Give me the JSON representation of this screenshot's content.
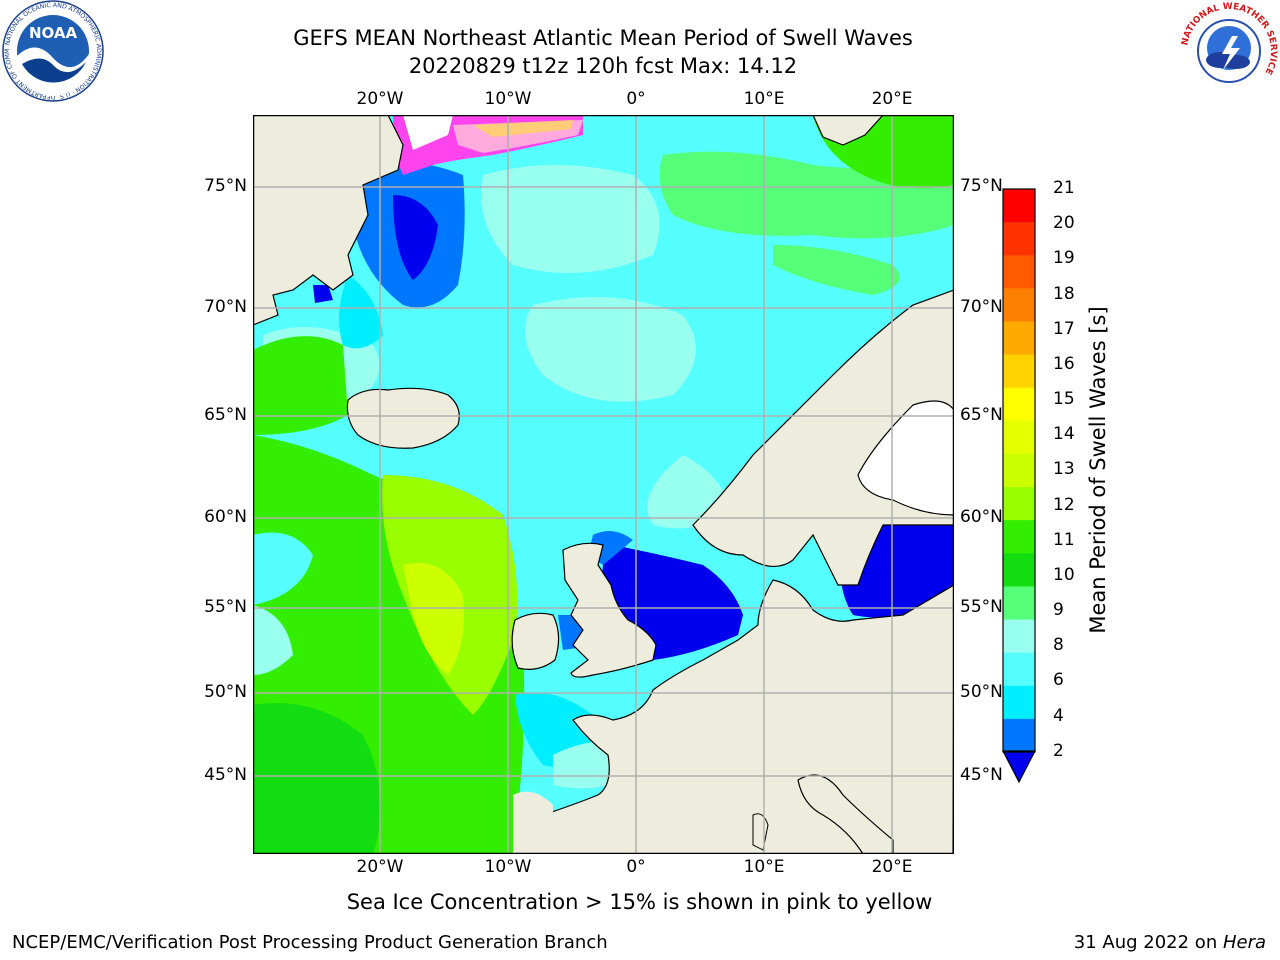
{
  "header": {
    "title_line1": "GEFS MEAN Northeast Atlantic Mean Period of Swell Waves",
    "title_line2": "20220829 t12z 120h fcst   Max: 14.12"
  },
  "logos": {
    "noaa_text": "NOAA",
    "noaa_ring_text": "NATIONAL OCEANIC AND ATMOSPHERIC ADMINISTRATION · U.S. DEPARTMENT OF COMMERCE",
    "nws_ring_text": "NATIONAL WEATHER SERVICE"
  },
  "map": {
    "lon_labels": [
      "20°W",
      "10°W",
      "0°",
      "10°E",
      "20°E"
    ],
    "lat_labels": [
      "75°N",
      "70°N",
      "65°N",
      "60°N",
      "55°N",
      "50°N",
      "45°N"
    ],
    "land_color": "#eeecdd",
    "grid_color": "#b0b0b0"
  },
  "colorbar": {
    "label": "Mean Period of Swell Waves [s]",
    "ticks": [
      "21",
      "20",
      "19",
      "18",
      "17",
      "16",
      "15",
      "14",
      "13",
      "12",
      "11",
      "10",
      "9",
      "8",
      "6",
      "4",
      "2"
    ],
    "colors": [
      "#ff0000",
      "#ff3300",
      "#ff5a00",
      "#ff8000",
      "#ffaa00",
      "#ffd200",
      "#ffff00",
      "#e6ff00",
      "#ccff00",
      "#99ff00",
      "#33ee00",
      "#11dd11",
      "#55ff77",
      "#99ffee",
      "#55ffff",
      "#00eeff",
      "#0077ff"
    ],
    "extend_color": "#0000ee"
  },
  "notes": {
    "sea_ice": "Sea Ice Concentration > 15% is shown in pink to yellow"
  },
  "footer": {
    "left": "NCEP/EMC/Verification Post Processing Product Generation Branch",
    "right_date": "31 Aug 2022 on ",
    "right_host": "Hera"
  }
}
